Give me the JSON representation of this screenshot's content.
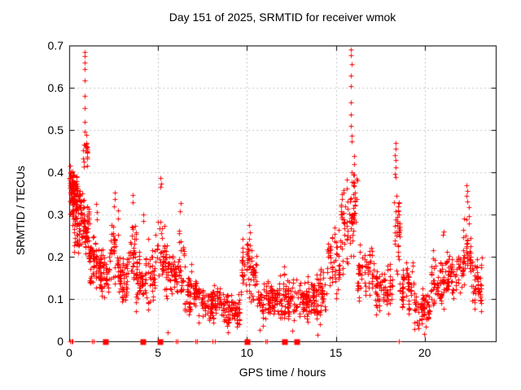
{
  "chart_data": {
    "type": "scatter",
    "title": "Day 151 of 2025, SRMTID for receiver wmok",
    "xlabel": "GPS time / hours",
    "ylabel": "SRMTID / TECUs",
    "xlim": [
      0,
      24
    ],
    "ylim": [
      0,
      0.7
    ],
    "xticks": {
      "values": [
        0,
        5,
        10,
        15,
        20
      ],
      "labels": [
        "0",
        "5",
        "10",
        "15",
        "20"
      ]
    },
    "yticks": {
      "values": [
        0,
        0.1,
        0.2,
        0.3,
        0.4,
        0.5,
        0.6,
        0.7
      ],
      "labels": [
        "0",
        "0.1",
        "0.2",
        "0.3",
        "0.4",
        "0.5",
        "0.6",
        "0.7"
      ]
    },
    "grid": true,
    "legend": null,
    "marker": {
      "shape": "plus",
      "color": "#ff0000",
      "size": 7
    },
    "axis_color": "#000000",
    "grid_color": "#b4b4b4",
    "background": "#ffffff",
    "density_bands_format": "[x_start_hr, x_end_hr, y_min_TECU, y_max_TECU, n_points]",
    "density_bands": [
      [
        0.0,
        0.25,
        0.27,
        0.42,
        60
      ],
      [
        0.02,
        0.55,
        0.3,
        0.405,
        55
      ],
      [
        0.25,
        0.75,
        0.22,
        0.37,
        70
      ],
      [
        0.75,
        1.15,
        0.2,
        0.345,
        60
      ],
      [
        0.78,
        1.05,
        0.42,
        0.475,
        20
      ],
      [
        1.1,
        1.65,
        0.12,
        0.26,
        60
      ],
      [
        1.65,
        2.35,
        0.095,
        0.21,
        70
      ],
      [
        2.35,
        2.75,
        0.13,
        0.31,
        40
      ],
      [
        2.75,
        3.35,
        0.09,
        0.21,
        60
      ],
      [
        3.35,
        3.75,
        0.12,
        0.3,
        35
      ],
      [
        3.75,
        4.85,
        0.08,
        0.22,
        100
      ],
      [
        4.85,
        5.4,
        0.11,
        0.31,
        45
      ],
      [
        5.4,
        6.1,
        0.09,
        0.24,
        60
      ],
      [
        6.1,
        6.5,
        0.09,
        0.27,
        35
      ],
      [
        6.5,
        7.4,
        0.05,
        0.17,
        80
      ],
      [
        7.4,
        8.6,
        0.035,
        0.14,
        105
      ],
      [
        8.6,
        9.6,
        0.03,
        0.12,
        90
      ],
      [
        9.6,
        10.15,
        0.08,
        0.25,
        45
      ],
      [
        10.15,
        10.55,
        0.09,
        0.22,
        35
      ],
      [
        10.55,
        11.6,
        0.05,
        0.15,
        90
      ],
      [
        11.6,
        12.6,
        0.05,
        0.16,
        85
      ],
      [
        12.6,
        13.7,
        0.05,
        0.16,
        90
      ],
      [
        13.7,
        14.5,
        0.05,
        0.17,
        70
      ],
      [
        14.5,
        15.25,
        0.1,
        0.28,
        60
      ],
      [
        15.25,
        16.05,
        0.16,
        0.38,
        60
      ],
      [
        15.75,
        16.2,
        0.24,
        0.46,
        30
      ],
      [
        16.2,
        17.2,
        0.09,
        0.25,
        70
      ],
      [
        17.2,
        18.25,
        0.05,
        0.19,
        80
      ],
      [
        18.25,
        18.6,
        0.14,
        0.4,
        40
      ],
      [
        18.6,
        19.4,
        0.06,
        0.19,
        65
      ],
      [
        19.4,
        20.3,
        0.03,
        0.13,
        75
      ],
      [
        20.3,
        21.2,
        0.07,
        0.21,
        65
      ],
      [
        21.2,
        22.15,
        0.09,
        0.23,
        70
      ],
      [
        22.15,
        22.6,
        0.12,
        0.34,
        45
      ],
      [
        22.6,
        23.25,
        0.07,
        0.21,
        55
      ]
    ],
    "outlier_points": [
      [
        0.87,
        0.685
      ],
      [
        0.875,
        0.675
      ],
      [
        0.87,
        0.659
      ],
      [
        0.88,
        0.645
      ],
      [
        0.87,
        0.617
      ],
      [
        0.872,
        0.581
      ],
      [
        0.88,
        0.552
      ],
      [
        0.878,
        0.519
      ],
      [
        0.87,
        0.497
      ],
      [
        0.05,
        0.415
      ],
      [
        0.08,
        0.401
      ],
      [
        0.1,
        0.392
      ],
      [
        1.52,
        0.325
      ],
      [
        1.55,
        0.305
      ],
      [
        1.57,
        0.289
      ],
      [
        2.55,
        0.352
      ],
      [
        2.57,
        0.336
      ],
      [
        2.52,
        0.319
      ],
      [
        3.55,
        0.346
      ],
      [
        3.57,
        0.329
      ],
      [
        4.15,
        0.3
      ],
      [
        4.18,
        0.284
      ],
      [
        4.45,
        0.242
      ],
      [
        5.15,
        0.386
      ],
      [
        5.18,
        0.374
      ],
      [
        5.12,
        0.365
      ],
      [
        6.28,
        0.327
      ],
      [
        6.25,
        0.307
      ],
      [
        10.12,
        0.275
      ],
      [
        10.15,
        0.258
      ],
      [
        10.14,
        0.242
      ],
      [
        10.18,
        0.226
      ],
      [
        14.1,
        0.04
      ],
      [
        15.85,
        0.69
      ],
      [
        15.86,
        0.677
      ],
      [
        15.88,
        0.655
      ],
      [
        15.85,
        0.629
      ],
      [
        15.86,
        0.604
      ],
      [
        15.87,
        0.565
      ],
      [
        15.85,
        0.537
      ],
      [
        15.86,
        0.51
      ],
      [
        15.9,
        0.487
      ],
      [
        15.88,
        0.473
      ],
      [
        18.35,
        0.47
      ],
      [
        18.37,
        0.455
      ],
      [
        18.34,
        0.441
      ],
      [
        18.38,
        0.428
      ],
      [
        18.36,
        0.412
      ],
      [
        18.33,
        0.396
      ],
      [
        21.0,
        0.252
      ],
      [
        21.05,
        0.26
      ],
      [
        22.35,
        0.37
      ],
      [
        22.38,
        0.355
      ],
      [
        22.34,
        0.345
      ],
      [
        22.4,
        0.331
      ],
      [
        5.55,
        0.022
      ],
      [
        8.92,
        0.022
      ],
      [
        10.7,
        0.027
      ],
      [
        12.55,
        0.025
      ],
      [
        13.95,
        0.015
      ],
      [
        19.95,
        0.018
      ]
    ],
    "zero_axis_markers": {
      "plus_hours": [
        0.05,
        0.12,
        0.2,
        1.28,
        1.38,
        6.02,
        6.1,
        7.08,
        7.2,
        8.08,
        8.22,
        11.02,
        11.15,
        18.55
      ],
      "square_hours": [
        2.0,
        4.1,
        5.1,
        10.0,
        12.1,
        12.8
      ]
    }
  }
}
